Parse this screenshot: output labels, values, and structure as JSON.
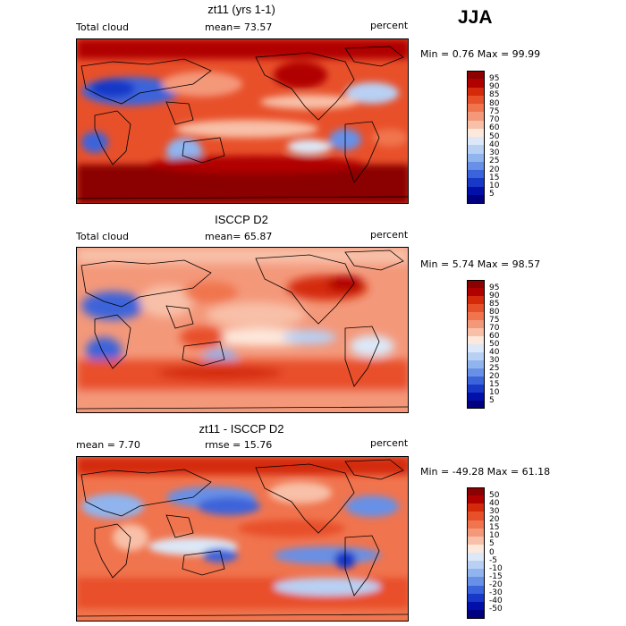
{
  "season": "JJA",
  "panels": [
    {
      "title": "zt11 (yrs 1-1)",
      "left_label": "Total cloud",
      "mid_label": "mean=  73.57",
      "right_label": "percent",
      "stats": "Min =   0.76 Max =  99.99",
      "colorbar": {
        "ticks": [
          "95",
          "90",
          "85",
          "80",
          "75",
          "70",
          "60",
          "50",
          "40",
          "30",
          "25",
          "20",
          "15",
          "10",
          "5"
        ],
        "colors": [
          "#8b0000",
          "#b00000",
          "#d42a0a",
          "#e8502a",
          "#f0744e",
          "#f4987a",
          "#f8c0a8",
          "#fde8dc",
          "#dce8f8",
          "#b8d0f4",
          "#90b4ee",
          "#6890e6",
          "#3c64da",
          "#1838c8",
          "#0010a8",
          "#000080"
        ]
      }
    },
    {
      "title": "ISCCP D2",
      "left_label": "Total cloud",
      "mid_label": "mean=  65.87",
      "right_label": "percent",
      "stats": "Min =   5.74 Max =  98.57",
      "colorbar": {
        "ticks": [
          "95",
          "90",
          "85",
          "80",
          "75",
          "70",
          "60",
          "50",
          "40",
          "30",
          "25",
          "20",
          "15",
          "10",
          "5"
        ],
        "colors": [
          "#8b0000",
          "#b00000",
          "#d42a0a",
          "#e8502a",
          "#f0744e",
          "#f4987a",
          "#f8c0a8",
          "#fde8dc",
          "#dce8f8",
          "#b8d0f4",
          "#90b4ee",
          "#6890e6",
          "#3c64da",
          "#1838c8",
          "#0010a8",
          "#000080"
        ]
      }
    },
    {
      "title": "zt11 - ISCCP D2",
      "left_label": "mean =    7.70",
      "mid_label": "rmse =   15.76",
      "right_label": "percent",
      "stats": "Min = -49.28 Max =  61.18",
      "colorbar": {
        "ticks": [
          "50",
          "40",
          "30",
          "20",
          "15",
          "10",
          "5",
          "0",
          "-5",
          "-10",
          "-15",
          "-20",
          "-30",
          "-40",
          "-50"
        ],
        "colors": [
          "#8b0000",
          "#b00000",
          "#d42a0a",
          "#e8502a",
          "#f0744e",
          "#f4987a",
          "#f8c0a8",
          "#fde8dc",
          "#dce8f8",
          "#b8d0f4",
          "#90b4ee",
          "#6890e6",
          "#3c64da",
          "#1838c8",
          "#0010a8",
          "#000080"
        ]
      }
    }
  ]
}
